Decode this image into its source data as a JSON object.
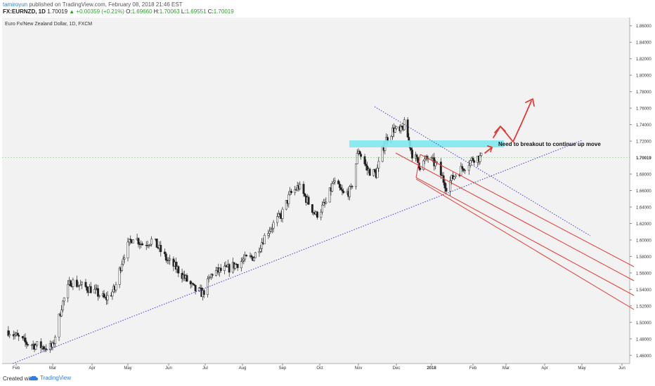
{
  "header": {
    "author": "tamiroyun",
    "published_text": "published on TradingView.com, February 08, 2018 21:46 EST",
    "symbol": "FX:EURNZD, 1D",
    "last": "1.70019",
    "change": "▲ +0.00359 (+0.21%)",
    "open_label": "O:",
    "open": "1.69660",
    "high_label": "H:",
    "high": "1.70063",
    "low_label": "L:",
    "low": "1.69551",
    "close_label": "C:",
    "close": "1.70019"
  },
  "footer": {
    "created_with": "Created with",
    "brand": "TradingView"
  },
  "chart_data": {
    "type": "candlestick",
    "title": "Euro Fx/New Zealand Dollar, 1D, FXCM",
    "ylim": [
      1.45,
      1.87
    ],
    "y_ticks": [
      "1.46000",
      "1.48000",
      "1.50000",
      "1.52000",
      "1.54000",
      "1.56000",
      "1.58000",
      "1.60000",
      "1.62000",
      "1.64000",
      "1.66000",
      "1.68000",
      "1.70019",
      "1.72000",
      "1.74000",
      "1.76000",
      "1.78000",
      "1.80000",
      "1.82000",
      "1.84000",
      "1.86000"
    ],
    "x_ticks": [
      "Feb",
      "Mar",
      "Apr",
      "May",
      "Jun",
      "Jul",
      "Aug",
      "Sep",
      "Oct",
      "Nov",
      "Dec",
      "2018",
      "Feb",
      "Mar",
      "Apr",
      "May",
      "Jun"
    ],
    "last_price": 1.70019,
    "last_price_label": "1.70019",
    "price_path": [
      [
        "2017-01-26",
        1.49
      ],
      [
        "2017-02-08",
        1.475
      ],
      [
        "2017-02-22",
        1.47
      ],
      [
        "2017-03-01",
        1.47
      ],
      [
        "2017-03-08",
        1.52
      ],
      [
        "2017-03-15",
        1.55
      ],
      [
        "2017-03-22",
        1.545
      ],
      [
        "2017-04-01",
        1.54
      ],
      [
        "2017-04-12",
        1.528
      ],
      [
        "2017-04-20",
        1.54
      ],
      [
        "2017-04-27",
        1.58
      ],
      [
        "2017-05-05",
        1.605
      ],
      [
        "2017-05-12",
        1.595
      ],
      [
        "2017-05-20",
        1.6
      ],
      [
        "2017-05-31",
        1.575
      ],
      [
        "2017-06-08",
        1.565
      ],
      [
        "2017-06-22",
        1.54
      ],
      [
        "2017-06-29",
        1.535
      ],
      [
        "2017-07-07",
        1.56
      ],
      [
        "2017-07-20",
        1.565
      ],
      [
        "2017-08-01",
        1.575
      ],
      [
        "2017-08-10",
        1.58
      ],
      [
        "2017-08-20",
        1.61
      ],
      [
        "2017-08-31",
        1.63
      ],
      [
        "2017-09-07",
        1.655
      ],
      [
        "2017-09-14",
        1.665
      ],
      [
        "2017-09-22",
        1.645
      ],
      [
        "2017-09-28",
        1.63
      ],
      [
        "2017-10-06",
        1.645
      ],
      [
        "2017-10-12",
        1.67
      ],
      [
        "2017-10-20",
        1.655
      ],
      [
        "2017-10-26",
        1.66
      ],
      [
        "2017-11-01",
        1.71
      ],
      [
        "2017-11-08",
        1.685
      ],
      [
        "2017-11-15",
        1.68
      ],
      [
        "2017-11-22",
        1.72
      ],
      [
        "2017-11-29",
        1.735
      ],
      [
        "2017-12-04",
        1.73
      ],
      [
        "2017-12-08",
        1.74
      ],
      [
        "2017-12-15",
        1.705
      ],
      [
        "2017-12-22",
        1.69
      ],
      [
        "2017-12-29",
        1.7
      ],
      [
        "2018-01-05",
        1.69
      ],
      [
        "2018-01-12",
        1.665
      ],
      [
        "2018-01-19",
        1.68
      ],
      [
        "2018-01-26",
        1.69
      ],
      [
        "2018-02-02",
        1.7
      ],
      [
        "2018-02-08",
        1.70019
      ]
    ],
    "annotations": {
      "label": "Need to breakout to continue up move"
    }
  }
}
